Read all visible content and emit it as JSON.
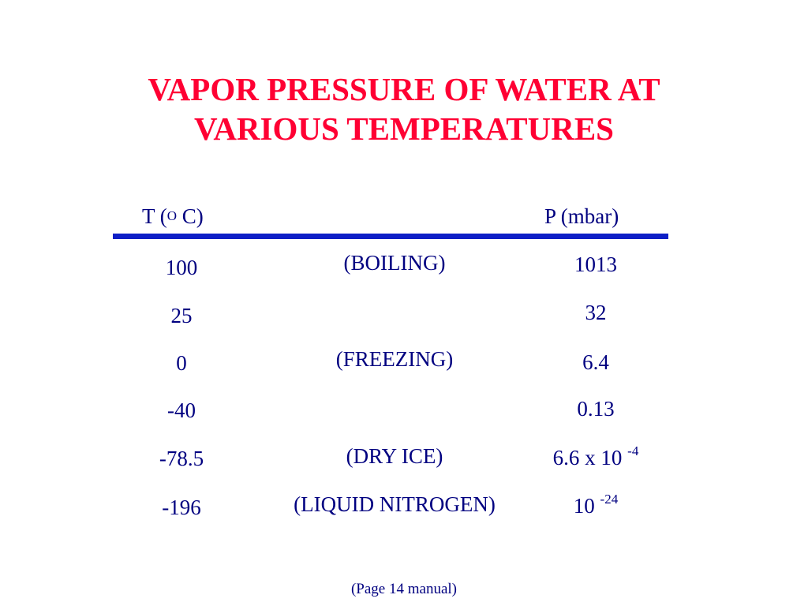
{
  "title": {
    "line1": "VAPOR PRESSURE OF WATER AT",
    "line2": "VARIOUS TEMPERATURES"
  },
  "columns": {
    "temp": {
      "prefix": "T (",
      "sup": "O",
      "suffix": " C)"
    },
    "pressure": "P (mbar)"
  },
  "rows": [
    {
      "temp": "100",
      "note": "(BOILING)",
      "pressure": "1013",
      "pressure_exp": ""
    },
    {
      "temp": "25",
      "note": "",
      "pressure": "32",
      "pressure_exp": ""
    },
    {
      "temp": "0",
      "note": "(FREEZING)",
      "pressure": "6.4",
      "pressure_exp": ""
    },
    {
      "temp": "-40",
      "note": "",
      "pressure": "0.13",
      "pressure_exp": ""
    },
    {
      "temp": "-78.5",
      "note": "(DRY ICE)",
      "pressure": "6.6 x 10 ",
      "pressure_exp": "-4"
    },
    {
      "temp": "-196",
      "note": "(LIQUID NITROGEN)",
      "pressure": "10 ",
      "pressure_exp": "-24"
    }
  ],
  "footer": "(Page 14 manual)",
  "colors": {
    "title": "#ff0033",
    "text": "#000080",
    "rule": "#0e1fc6"
  }
}
